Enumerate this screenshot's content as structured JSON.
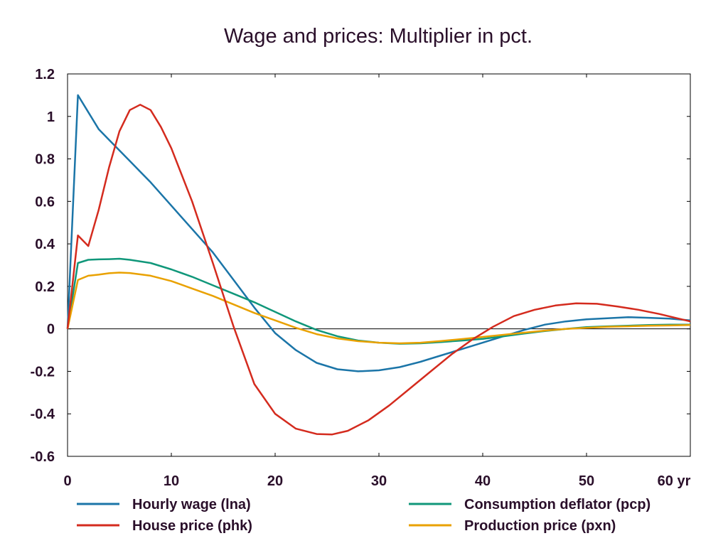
{
  "chart_data": {
    "type": "line",
    "title": "Wage and prices: Multiplier in pct.",
    "xlabel": "",
    "ylabel": "",
    "x_unit_label": "yr",
    "xlim": [
      0,
      60
    ],
    "ylim": [
      -0.6,
      1.2
    ],
    "x_ticks": [
      0,
      10,
      20,
      30,
      40,
      50,
      60
    ],
    "x_tick_labels": [
      "0",
      "10",
      "20",
      "30",
      "40",
      "50",
      "60 yr"
    ],
    "y_ticks": [
      -0.6,
      -0.4,
      -0.2,
      0,
      0.2,
      0.4,
      0.6,
      0.8,
      1,
      1.2
    ],
    "y_tick_labels": [
      "-0.6",
      "-0.4",
      "-0.2",
      "0",
      "0.2",
      "0.4",
      "0.6",
      "0.8",
      "1",
      "1.2"
    ],
    "zero_line": true,
    "grid": false,
    "legend_position": "bottom",
    "series": [
      {
        "name": "Hourly wage (lna)",
        "color": "#1b75a8",
        "x": [
          0,
          1,
          2,
          3,
          4,
          5,
          6,
          7,
          8,
          10,
          12,
          14,
          16,
          18,
          20,
          22,
          24,
          26,
          28,
          30,
          32,
          34,
          36,
          38,
          40,
          42,
          44,
          46,
          48,
          50,
          52,
          54,
          56,
          58,
          60
        ],
        "y": [
          0.0,
          1.1,
          1.02,
          0.94,
          0.89,
          0.84,
          0.79,
          0.74,
          0.69,
          0.58,
          0.47,
          0.36,
          0.23,
          0.1,
          -0.02,
          -0.1,
          -0.16,
          -0.19,
          -0.2,
          -0.195,
          -0.18,
          -0.155,
          -0.125,
          -0.095,
          -0.065,
          -0.035,
          -0.005,
          0.02,
          0.035,
          0.045,
          0.05,
          0.055,
          0.052,
          0.048,
          0.04
        ]
      },
      {
        "name": "Consumption deflator (pcp)",
        "color": "#10977a",
        "x": [
          0,
          1,
          2,
          3,
          4,
          5,
          6,
          8,
          10,
          12,
          14,
          16,
          18,
          20,
          22,
          24,
          26,
          28,
          30,
          32,
          34,
          36,
          38,
          40,
          42,
          44,
          46,
          48,
          50,
          52,
          54,
          56,
          58,
          60
        ],
        "y": [
          0.0,
          0.31,
          0.325,
          0.327,
          0.328,
          0.33,
          0.325,
          0.31,
          0.28,
          0.245,
          0.205,
          0.165,
          0.125,
          0.08,
          0.035,
          -0.005,
          -0.035,
          -0.055,
          -0.065,
          -0.07,
          -0.068,
          -0.062,
          -0.055,
          -0.047,
          -0.035,
          -0.022,
          -0.01,
          0.0,
          0.008,
          0.012,
          0.015,
          0.018,
          0.02,
          0.02
        ]
      },
      {
        "name": "House price (phk)",
        "color": "#d42b1e",
        "x": [
          0,
          1,
          2,
          3,
          4,
          5,
          6,
          7,
          8,
          9,
          10,
          12,
          14,
          16,
          18,
          20,
          22,
          24,
          25.5,
          27,
          29,
          31,
          33,
          35,
          37,
          39,
          41,
          43,
          45,
          47,
          49,
          51,
          53,
          55,
          57,
          60
        ],
        "y": [
          0.0,
          0.44,
          0.39,
          0.56,
          0.76,
          0.93,
          1.03,
          1.055,
          1.03,
          0.95,
          0.85,
          0.6,
          0.31,
          0.01,
          -0.26,
          -0.4,
          -0.47,
          -0.495,
          -0.497,
          -0.48,
          -0.43,
          -0.36,
          -0.28,
          -0.2,
          -0.12,
          -0.05,
          0.01,
          0.06,
          0.09,
          0.11,
          0.12,
          0.118,
          0.105,
          0.09,
          0.07,
          0.035
        ]
      },
      {
        "name": "Production price (pxn)",
        "color": "#e9a100",
        "x": [
          0,
          1,
          2,
          3,
          4,
          5,
          6,
          8,
          10,
          12,
          14,
          16,
          18,
          20,
          22,
          24,
          26,
          28,
          30,
          32,
          34,
          36,
          38,
          40,
          42,
          44,
          46,
          48,
          50,
          52,
          54,
          56,
          58,
          60
        ],
        "y": [
          0.0,
          0.23,
          0.25,
          0.255,
          0.262,
          0.265,
          0.263,
          0.25,
          0.225,
          0.19,
          0.155,
          0.115,
          0.075,
          0.04,
          0.005,
          -0.025,
          -0.045,
          -0.058,
          -0.065,
          -0.068,
          -0.065,
          -0.057,
          -0.048,
          -0.038,
          -0.028,
          -0.018,
          -0.008,
          0.0,
          0.005,
          0.01,
          0.012,
          0.015,
          0.016,
          0.018
        ]
      }
    ],
    "legend_order": [
      0,
      1,
      2,
      3
    ]
  }
}
